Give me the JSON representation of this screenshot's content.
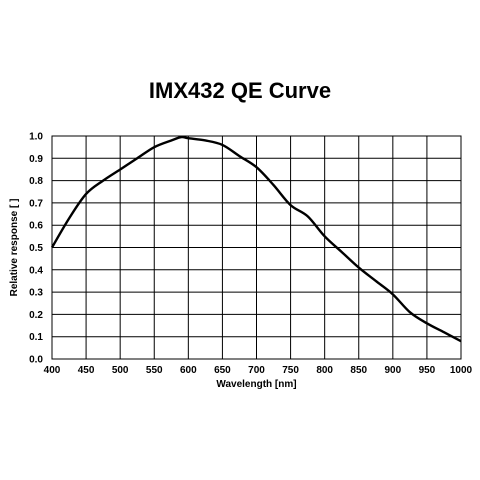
{
  "chart_data": {
    "type": "line",
    "title": "IMX432 QE Curve",
    "xlabel": "Wavelength [nm]",
    "ylabel": "Relative response [ ]",
    "xlim": [
      400,
      1000
    ],
    "ylim": [
      0.0,
      1.0
    ],
    "x_ticks": [
      400,
      450,
      500,
      550,
      600,
      650,
      700,
      750,
      800,
      850,
      900,
      950,
      1000
    ],
    "y_ticks": [
      0.0,
      0.1,
      0.2,
      0.3,
      0.4,
      0.5,
      0.6,
      0.7,
      0.8,
      0.9,
      1.0
    ],
    "x_tick_labels": [
      "400",
      "450",
      "500",
      "550",
      "600",
      "650",
      "700",
      "750",
      "800",
      "850",
      "900",
      "950",
      "1000"
    ],
    "y_tick_labels": [
      "0.0",
      "0.1",
      "0.2",
      "0.3",
      "0.4",
      "0.5",
      "0.6",
      "0.7",
      "0.8",
      "0.9",
      "1.0"
    ],
    "grid": true,
    "legend": "none",
    "line_color": "#000000",
    "series": [
      {
        "x": [
          400,
          425,
          450,
          475,
          500,
          525,
          550,
          575,
          590,
          600,
          625,
          650,
          675,
          700,
          725,
          750,
          775,
          800,
          825,
          850,
          875,
          900,
          925,
          950,
          975,
          1000
        ],
        "y": [
          0.5,
          0.63,
          0.74,
          0.8,
          0.85,
          0.9,
          0.95,
          0.98,
          0.995,
          0.99,
          0.98,
          0.96,
          0.91,
          0.86,
          0.78,
          0.69,
          0.64,
          0.55,
          0.48,
          0.41,
          0.35,
          0.29,
          0.21,
          0.16,
          0.12,
          0.08
        ]
      }
    ]
  }
}
